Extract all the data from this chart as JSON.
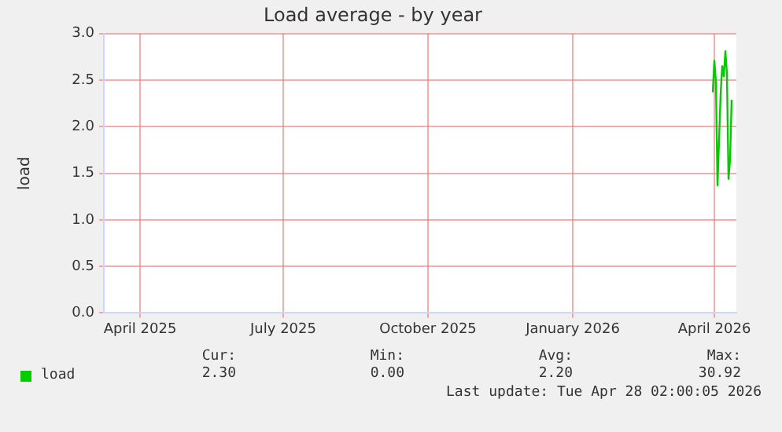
{
  "chart_data": {
    "type": "line",
    "title": "Load average - by year",
    "ylabel": "load",
    "series": [
      {
        "name": "load",
        "color": "#00cc00",
        "x": [
          "2026-04-13",
          "2026-04-14",
          "2026-04-15",
          "2026-04-16",
          "2026-04-18",
          "2026-04-19",
          "2026-04-20",
          "2026-04-21",
          "2026-04-22",
          "2026-04-23",
          "2026-04-24",
          "2026-04-25"
        ],
        "values": [
          2.37,
          2.71,
          2.48,
          1.37,
          2.35,
          2.65,
          2.54,
          2.81,
          2.57,
          1.44,
          1.65,
          2.29
        ]
      }
    ],
    "xlim": [
      "2025-03-22",
      "2026-04-28"
    ],
    "xticks": [
      {
        "value": "2025-04-14",
        "label": "April 2025"
      },
      {
        "value": "2025-07-14",
        "label": "July 2025"
      },
      {
        "value": "2025-10-14",
        "label": "October 2025"
      },
      {
        "value": "2026-01-14",
        "label": "January 2026"
      },
      {
        "value": "2026-04-14",
        "label": "April 2026"
      }
    ],
    "ylim": [
      0,
      3
    ],
    "yticks": [
      {
        "value": 0,
        "label": "0.0"
      },
      {
        "value": 0.5,
        "label": "0.5"
      },
      {
        "value": 1,
        "label": "1.0"
      },
      {
        "value": 1.5,
        "label": "1.5"
      },
      {
        "value": 2,
        "label": "2.0"
      },
      {
        "value": 2.5,
        "label": "2.5"
      },
      {
        "value": 3,
        "label": "3.0"
      }
    ],
    "grid": true,
    "legend": "bottom left",
    "marker": "none",
    "line_style": "solid",
    "annotations": [
      "Cur:",
      "2.30",
      "Min:",
      "0.00",
      "Avg:",
      "2.20",
      "Max:",
      "30.92",
      "Last update: Tue Apr 28 02:00:05 2026"
    ]
  }
}
